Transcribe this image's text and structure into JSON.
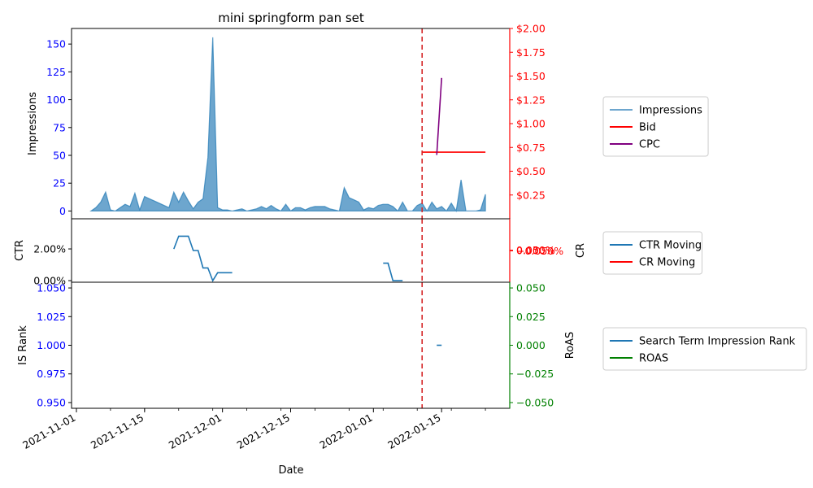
{
  "chart_data": {
    "type": "line",
    "title": "mini springform pan set",
    "xlabel": "Date",
    "x_ticks": [
      "2021-11-01",
      "2021-11-15",
      "2021-12-01",
      "2021-12-15",
      "2022-01-01",
      "2022-01-15"
    ],
    "x_range": [
      "2021-10-31",
      "2022-01-29"
    ],
    "vline": {
      "date": "2022-01-11",
      "color": "#d62728",
      "style": "dashed"
    },
    "panels": [
      {
        "name": "top",
        "left_axis": {
          "label": "Impressions",
          "ylim": [
            -7,
            164
          ],
          "ticks": [
            "0",
            "25",
            "50",
            "75",
            "100",
            "125",
            "150"
          ],
          "tick_color": "#0000ff"
        },
        "right_axis": {
          "label": "",
          "ylim": [
            0.0,
            2.0
          ],
          "ticks": [
            "$0.25",
            "$0.50",
            "$0.75",
            "$1.00",
            "$1.25",
            "$1.50",
            "$1.75",
            "$2.00"
          ],
          "tick_color": "#ff0000"
        },
        "series": [
          {
            "name": "Impressions",
            "kind": "area",
            "color": "#1f77b4",
            "axis": "left",
            "dates": [
              "2021-11-04",
              "2021-11-05",
              "2021-11-06",
              "2021-11-07",
              "2021-11-08",
              "2021-11-09",
              "2021-11-10",
              "2021-11-11",
              "2021-11-12",
              "2021-11-13",
              "2021-11-14",
              "2021-11-15",
              "2021-11-16",
              "2021-11-17",
              "2021-11-18",
              "2021-11-19",
              "2021-11-20",
              "2021-11-21",
              "2021-11-22",
              "2021-11-23",
              "2021-11-24",
              "2021-11-25",
              "2021-11-26",
              "2021-11-27",
              "2021-11-28",
              "2021-11-29",
              "2021-11-30",
              "2021-12-01",
              "2021-12-02",
              "2021-12-03",
              "2021-12-04",
              "2021-12-05",
              "2021-12-06",
              "2021-12-07",
              "2021-12-08",
              "2021-12-09",
              "2021-12-10",
              "2021-12-11",
              "2021-12-12",
              "2021-12-13",
              "2021-12-14",
              "2021-12-15",
              "2021-12-16",
              "2021-12-17",
              "2021-12-18",
              "2021-12-19",
              "2021-12-20",
              "2021-12-21",
              "2021-12-22",
              "2021-12-23",
              "2021-12-24",
              "2021-12-25",
              "2021-12-26",
              "2021-12-27",
              "2021-12-28",
              "2021-12-29",
              "2021-12-30",
              "2021-12-31",
              "2022-01-01",
              "2022-01-02",
              "2022-01-03",
              "2022-01-04",
              "2022-01-05",
              "2022-01-06",
              "2022-01-07",
              "2022-01-08",
              "2022-01-09",
              "2022-01-10",
              "2022-01-11",
              "2022-01-12",
              "2022-01-13",
              "2022-01-14",
              "2022-01-15",
              "2022-01-16",
              "2022-01-17",
              "2022-01-18",
              "2022-01-19",
              "2022-01-20",
              "2022-01-21",
              "2022-01-22",
              "2022-01-23",
              "2022-01-24"
            ],
            "values": [
              0,
              3,
              8,
              17,
              1,
              0,
              3,
              6,
              4,
              16,
              1,
              13,
              11,
              9,
              7,
              5,
              3,
              17,
              8,
              17,
              9,
              2,
              8,
              11,
              48,
              156,
              3,
              1,
              1,
              0,
              1,
              2,
              0,
              1,
              2,
              4,
              2,
              5,
              2,
              0,
              6,
              0,
              3,
              3,
              1,
              3,
              4,
              4,
              4,
              2,
              1,
              0,
              21,
              12,
              10,
              8,
              1,
              3,
              2,
              5,
              6,
              6,
              4,
              0,
              8,
              0,
              0,
              5,
              7,
              0,
              8,
              2,
              4,
              0,
              7,
              0,
              28,
              0,
              0,
              0,
              1,
              15
            ]
          },
          {
            "name": "Bid",
            "kind": "line",
            "color": "#ff0000",
            "axis": "right",
            "dates": [
              "2022-01-11",
              "2022-01-24"
            ],
            "values": [
              0.7,
              0.7
            ]
          },
          {
            "name": "CPC",
            "kind": "line",
            "color": "#800080",
            "axis": "right",
            "dates": [
              "2022-01-14",
              "2022-01-15"
            ],
            "values": [
              0.67,
              1.48
            ]
          }
        ]
      },
      {
        "name": "middle",
        "left_axis": {
          "label": "CTR",
          "ylim": [
            -0.001,
            0.039
          ],
          "ticks": [
            "0.00%",
            "2.00%"
          ],
          "tick_color": "#000000"
        },
        "right_axis": {
          "label": "CR",
          "ylim": [
            -0.05,
            0.05
          ],
          "ticks": [
            "−0.050%",
            "0.000%",
            "0.050%"
          ],
          "tick_color": "#ff0000"
        },
        "series": [
          {
            "name": "CTR Moving",
            "kind": "line",
            "color": "#1f77b4",
            "axis": "left",
            "segments": [
              {
                "dates": [
                  "2021-11-21",
                  "2021-11-22",
                  "2021-11-23",
                  "2021-11-24",
                  "2021-11-25",
                  "2021-11-26",
                  "2021-11-27",
                  "2021-11-28",
                  "2021-11-29",
                  "2021-11-30",
                  "2021-12-01",
                  "2021-12-02",
                  "2021-12-03"
                ],
                "values": [
                  0.02,
                  0.028,
                  0.028,
                  0.028,
                  0.019,
                  0.019,
                  0.008,
                  0.008,
                  0.0,
                  0.005,
                  0.005,
                  0.005,
                  0.005
                ]
              },
              {
                "dates": [
                  "2022-01-03",
                  "2022-01-04",
                  "2022-01-05",
                  "2022-01-06",
                  "2022-01-07"
                ],
                "values": [
                  0.011,
                  0.011,
                  0.0,
                  0.0,
                  0.0
                ]
              }
            ]
          },
          {
            "name": "CR Moving",
            "kind": "line",
            "color": "#ff0000",
            "axis": "right",
            "segments": []
          }
        ]
      },
      {
        "name": "bottom",
        "left_axis": {
          "label": "IS Rank",
          "ylim": [
            0.945,
            1.055
          ],
          "ticks": [
            "0.950",
            "0.975",
            "1.000",
            "1.025",
            "1.050"
          ],
          "tick_color": "#0000ff"
        },
        "right_axis": {
          "label": "RoAS",
          "ylim": [
            -0.055,
            0.055
          ],
          "ticks": [
            "−0.050",
            "−0.025",
            "0.000",
            "0.025",
            "0.050"
          ],
          "tick_color": "#008000"
        },
        "series": [
          {
            "name": "Search Term Impression Rank",
            "kind": "line",
            "color": "#1f77b4",
            "axis": "left",
            "dates": [
              "2022-01-14",
              "2022-01-15"
            ],
            "values": [
              1.0,
              1.0
            ]
          },
          {
            "name": "ROAS",
            "kind": "line",
            "color": "#008000",
            "axis": "right",
            "dates": [],
            "values": []
          }
        ]
      }
    ]
  }
}
